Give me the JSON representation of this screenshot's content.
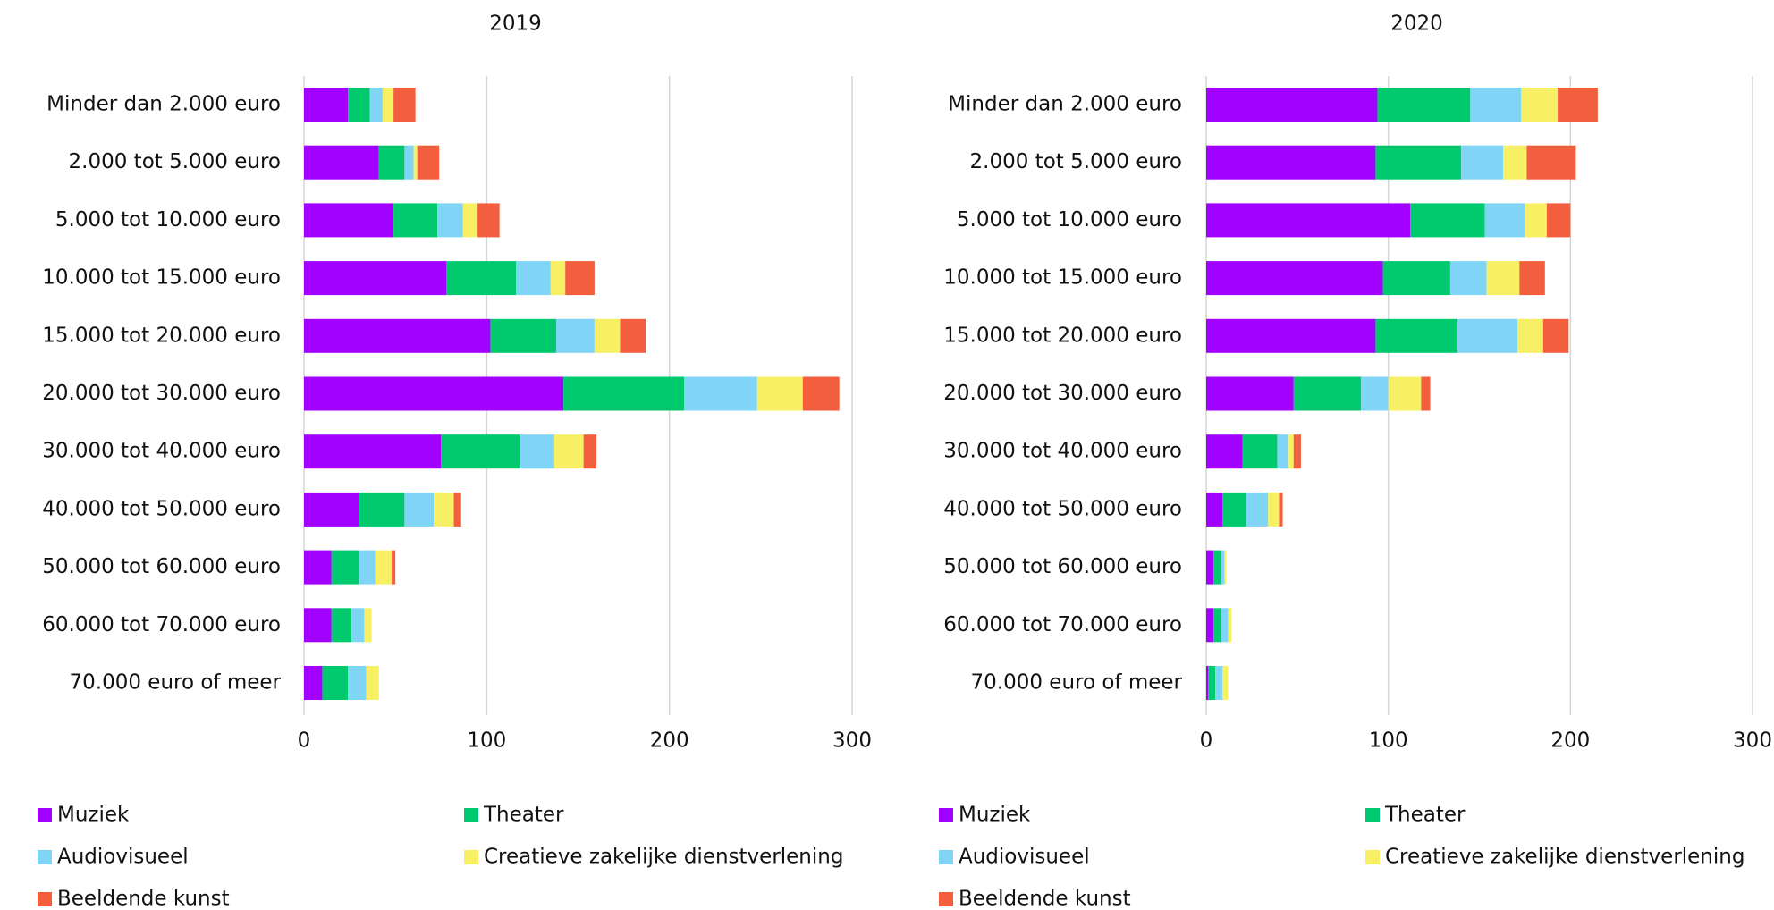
{
  "chart_data": [
    {
      "type": "bar",
      "orientation": "horizontal",
      "stacked": true,
      "title": "2019",
      "categories": [
        "Minder dan 2.000 euro",
        "2.000 tot 5.000 euro",
        "5.000 tot 10.000 euro",
        "10.000 tot 15.000 euro",
        "15.000 tot 20.000 euro",
        "20.000 tot 30.000 euro",
        "30.000 tot 40.000 euro",
        "40.000 tot 50.000 euro",
        "50.000 tot 60.000 euro",
        "60.000 tot 70.000 euro",
        "70.000 euro of meer"
      ],
      "series": [
        {
          "name": "Muziek",
          "color": "#a200ff",
          "values": [
            24,
            41,
            49,
            78,
            102,
            142,
            75,
            30,
            15,
            15,
            10
          ]
        },
        {
          "name": "Theater",
          "color": "#00c96e",
          "values": [
            12,
            14,
            24,
            38,
            36,
            66,
            43,
            25,
            15,
            11,
            14
          ]
        },
        {
          "name": "Audiovisueel",
          "color": "#80d4f5",
          "values": [
            7,
            5,
            14,
            19,
            21,
            40,
            19,
            16,
            9,
            7,
            10
          ]
        },
        {
          "name": "Creatieve zakelijke dienstverlening",
          "color": "#f7f064",
          "values": [
            6,
            2,
            8,
            8,
            14,
            25,
            16,
            11,
            9,
            4,
            7
          ]
        },
        {
          "name": "Beeldende kunst",
          "color": "#f35e3e",
          "values": [
            12,
            12,
            12,
            16,
            14,
            20,
            7,
            4,
            2,
            0,
            0
          ]
        }
      ],
      "xlim": [
        0,
        300
      ],
      "xticks": [
        0,
        100,
        200,
        300
      ],
      "grid": true
    },
    {
      "type": "bar",
      "orientation": "horizontal",
      "stacked": true,
      "title": "2020",
      "categories": [
        "Minder dan 2.000 euro",
        "2.000 tot 5.000 euro",
        "5.000 tot 10.000 euro",
        "10.000 tot 15.000 euro",
        "15.000 tot 20.000 euro",
        "20.000 tot 30.000 euro",
        "30.000 tot 40.000 euro",
        "40.000 tot 50.000 euro",
        "50.000 tot 60.000 euro",
        "60.000 tot 70.000 euro",
        "70.000 euro of meer"
      ],
      "series": [
        {
          "name": "Muziek",
          "color": "#a200ff",
          "values": [
            94,
            93,
            112,
            97,
            93,
            48,
            20,
            9,
            4,
            4,
            1
          ]
        },
        {
          "name": "Theater",
          "color": "#00c96e",
          "values": [
            51,
            47,
            41,
            37,
            45,
            37,
            19,
            13,
            4,
            4,
            4
          ]
        },
        {
          "name": "Audiovisueel",
          "color": "#80d4f5",
          "values": [
            28,
            23,
            22,
            20,
            33,
            15,
            6,
            12,
            2,
            4,
            4
          ]
        },
        {
          "name": "Creatieve zakelijke dienstverlening",
          "color": "#f7f064",
          "values": [
            20,
            13,
            12,
            18,
            14,
            18,
            3,
            6,
            1,
            2,
            3
          ]
        },
        {
          "name": "Beeldende kunst",
          "color": "#f35e3e",
          "values": [
            22,
            27,
            13,
            14,
            14,
            5,
            4,
            2,
            0,
            0,
            0
          ]
        }
      ],
      "xlim": [
        0,
        300
      ],
      "xticks": [
        0,
        100,
        200,
        300
      ],
      "grid": true
    }
  ]
}
